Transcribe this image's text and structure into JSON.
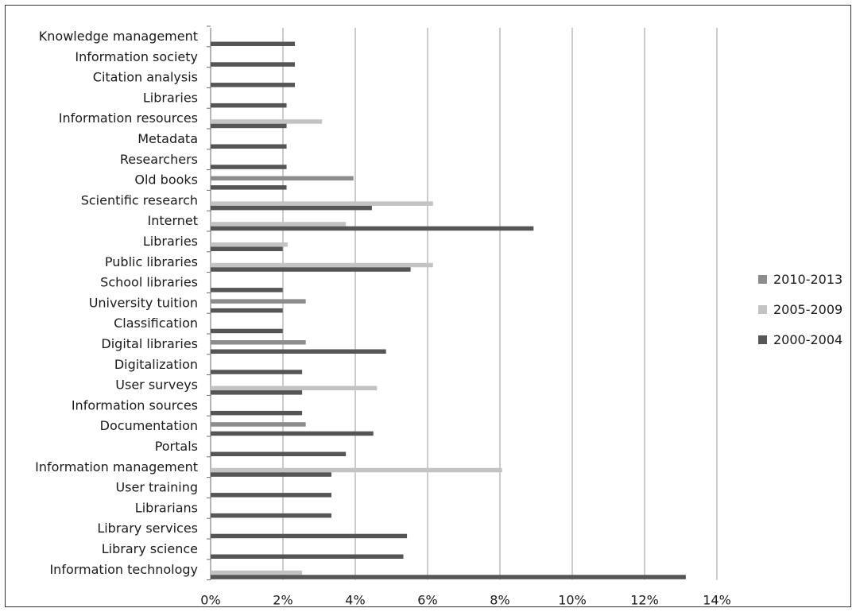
{
  "chart_data": {
    "type": "bar",
    "orientation": "horizontal",
    "categories": [
      "Knowledge management",
      "Information society",
      "Citation analysis",
      "Libraries",
      "Information resources",
      "Metadata",
      "Researchers",
      "Old books",
      "Scientific research",
      "Internet",
      "Libraries",
      "Public libraries",
      "School libraries",
      "University tuition",
      "Classification",
      "Digital libraries",
      "Digitalization",
      "User surveys",
      "Information sources",
      "Documentation",
      "Portals",
      "Information management",
      "User training",
      "Librarians",
      "Library services",
      "Library science",
      "Information technology"
    ],
    "series": [
      {
        "name": "2010-2013",
        "color": "#8c8c8c",
        "values": [
          0,
          0,
          0,
          0,
          0,
          0,
          0,
          3.95,
          0,
          0,
          0,
          0,
          0,
          2.63,
          0,
          2.63,
          0,
          0,
          0,
          2.63,
          0,
          0,
          0,
          0,
          0,
          0,
          0
        ]
      },
      {
        "name": "2005-2009",
        "color": "#c3c3c3",
        "values": [
          0,
          0,
          0,
          0,
          3.08,
          0,
          0,
          0,
          6.15,
          3.74,
          2.13,
          6.15,
          0,
          0,
          0,
          0,
          0,
          4.6,
          0,
          0,
          0,
          8.06,
          0,
          0,
          0,
          0,
          2.53
        ]
      },
      {
        "name": "2000-2004",
        "color": "#555555",
        "values": [
          2.33,
          2.33,
          2.33,
          2.1,
          2.1,
          2.1,
          2.1,
          2.1,
          4.46,
          8.93,
          1.99,
          5.53,
          1.99,
          1.99,
          1.99,
          4.85,
          2.53,
          2.53,
          2.53,
          4.5,
          3.74,
          3.34,
          3.34,
          3.34,
          5.43,
          5.33,
          13.14
        ]
      }
    ],
    "xlim": [
      0,
      14
    ],
    "x_ticks": [
      "0%",
      "2%",
      "4%",
      "6%",
      "8%",
      "10%",
      "12%",
      "14%"
    ],
    "grid": true,
    "legend_position": "right"
  }
}
